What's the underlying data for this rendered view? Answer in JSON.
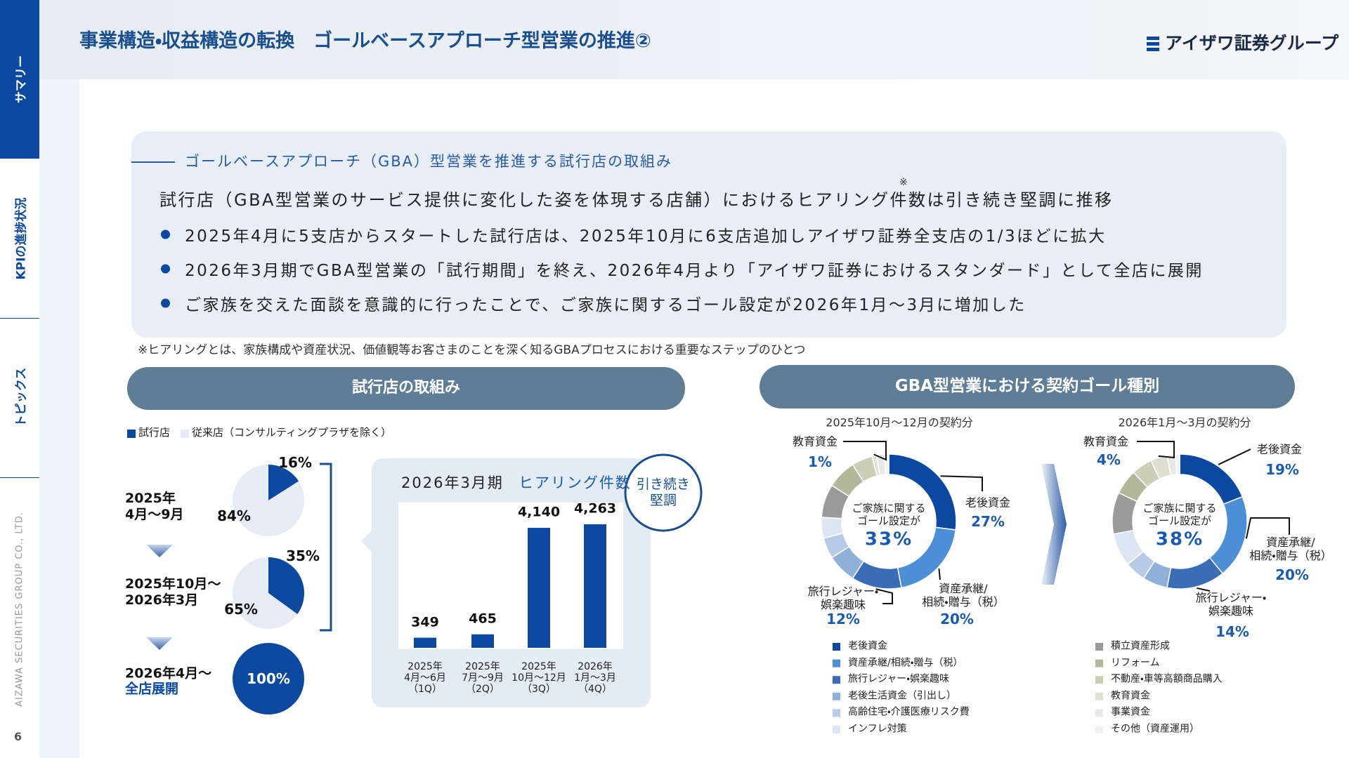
{
  "nav": [
    "サマリー",
    "KPIの進捗状況",
    "トピックス"
  ],
  "company": "AIZAWA SECURITIES GROUP CO., LTD.",
  "page_number": "6",
  "header": {
    "title": "事業構造・収益構造の転換　ゴールベースアプローチ型営業の推進②",
    "logo": "アイザワ証券グループ"
  },
  "summary": {
    "heading": "ゴールベースアプローチ（GBA）型営業を推進する試行店の取組み",
    "lead": "試行店（GBA型営業のサービス提供に変化した姿を体現する店舗）におけるヒアリング件数は引き続き堅調に推移",
    "lead_mark": "※",
    "bullets": [
      "2025年4月に5支店からスタートした試行店は、2025年10月に6支店追加しアイザワ証券全支店の1/3ほどに拡大",
      "2026年3月期でGBA型営業の「試行期間」を終え、2026年4月より「アイザワ証券におけるスタンダード」として全店に展開",
      "ご家族を交えた面談を意識的に行ったことで、ご家族に関するゴール設定が2026年1月～3月に増加した"
    ],
    "note": "※ヒアリングとは、家族構成や資産状況、価値観等お客さまのことを深く知るGBAプロセスにおける重要なステップのひとつ"
  },
  "chart_data": [
    {
      "type": "pie",
      "title": "試行店の取組み",
      "legend": [
        {
          "name": "試行店",
          "color": "#0b48a0"
        },
        {
          "name": "従来店（コンサルティングプラザを除く）",
          "color": "#e6ecf5"
        }
      ],
      "phases": [
        {
          "label": "2025年\n4月～9月",
          "values": [
            16,
            84
          ],
          "value_labels": [
            "16%",
            "84%"
          ]
        },
        {
          "label": "2025年10月～\n2026年3月",
          "values": [
            35,
            65
          ],
          "value_labels": [
            "35%",
            "65%"
          ]
        },
        {
          "label": "2026年4月～",
          "sublabel": "全店展開",
          "values": [
            100
          ],
          "value_labels": [
            "100%"
          ]
        }
      ]
    },
    {
      "type": "bar",
      "title": "2026年3月期",
      "subtitle": "ヒアリング件数",
      "badge": "引き続き\n堅調",
      "categories": [
        "2025年\n4月～6月\n（1Q）",
        "2025年\n7月～9月\n（2Q）",
        "2025年\n10月～12月\n（3Q）",
        "2026年\n1月～3月\n（4Q）"
      ],
      "values": [
        349,
        465,
        4140,
        4263
      ],
      "value_labels": [
        "349",
        "465",
        "4,140",
        "4,263"
      ],
      "color": "#0b48a0"
    },
    {
      "type": "donut",
      "title": "GBA型営業における契約ゴール種別",
      "categories": [
        "老後資金",
        "資産承継/相続・贈与（税）",
        "旅行レジャー・娯楽趣味",
        "老後生活資金（引出し）",
        "高齢住宅・介護医療リスク費",
        "インフレ対策",
        "積立資産形成",
        "リフォーム",
        "不動産・車等高額商品購入",
        "教育資金",
        "事業資金",
        "その他（資産運用）"
      ],
      "colors": [
        "#0b48a0",
        "#4d8fd6",
        "#3a6db5",
        "#8fb0d8",
        "#b7cbe6",
        "#dce6f3",
        "#9a9a9a",
        "#b4b89a",
        "#ccceb5",
        "#dedfcf",
        "#e8e8e8",
        "#f1f1f1"
      ],
      "donuts": [
        {
          "subtitle": "2025年10月～12月の契約分",
          "center_text": "ご家族に関する\nゴール設定が",
          "center_label": "33%",
          "values": [
            27,
            20,
            12,
            7,
            5,
            5,
            8,
            7,
            5,
            1,
            2,
            1
          ],
          "value_labels": [
            "27%",
            "20%",
            "12%",
            null,
            null,
            null,
            null,
            null,
            null,
            "1%",
            null,
            null
          ],
          "callouts": [
            "老後資金",
            "資産承継/\n相続・贈与（税）",
            "旅行レジャー・\n娯楽趣味",
            null,
            null,
            null,
            null,
            null,
            null,
            "教育資金",
            null,
            null
          ]
        },
        {
          "subtitle": "2026年1月～3月の契約分",
          "center_text": "ご家族に関する\nゴール設定が",
          "center_label": "38%",
          "values": [
            19,
            20,
            14,
            6,
            5,
            8,
            10,
            6,
            5,
            4,
            2,
            1
          ],
          "value_labels": [
            "19%",
            "20%",
            "14%",
            null,
            null,
            null,
            null,
            null,
            null,
            "4%",
            null,
            null
          ],
          "callouts": [
            "老後資金",
            "資産承継/\n相続・贈与（税）",
            "旅行レジャー・\n娯楽趣味",
            null,
            null,
            null,
            null,
            null,
            null,
            "教育資金",
            null,
            null
          ]
        }
      ]
    }
  ]
}
